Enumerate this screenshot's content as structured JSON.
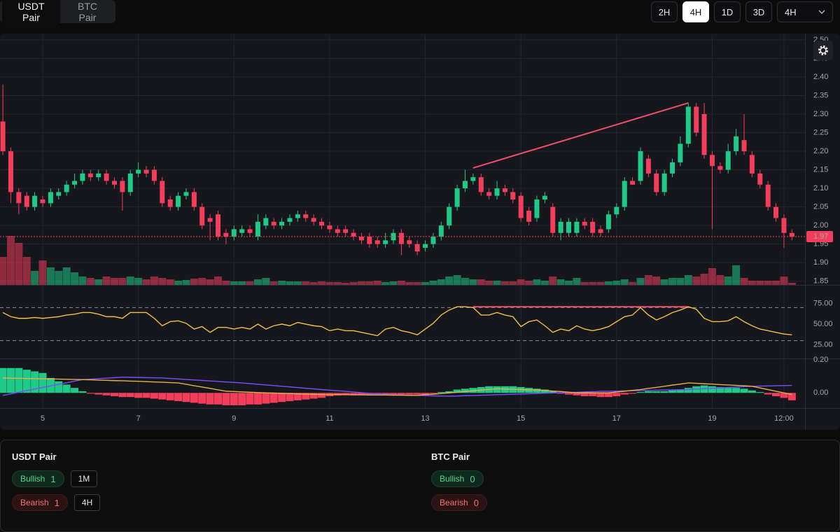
{
  "toolbar": {
    "pairs": [
      "USDT Pair",
      "BTC Pair"
    ],
    "active_pair": 0,
    "timeframes": [
      "2H",
      "4H",
      "1D",
      "3D"
    ],
    "active_timeframe": 1,
    "interval_select": "4H"
  },
  "chart_data": {
    "type": "candlestick",
    "up_color": "#1fc987",
    "down_color": "#f23d5b",
    "grid": true,
    "xlim": [
      4.107,
      20.94
    ],
    "xticks": [
      5,
      7,
      9,
      11,
      13,
      15,
      17,
      19,
      {
        "value": 20.5,
        "label": "12:00"
      }
    ],
    "ylim": [
      1.84,
      2.513
    ],
    "yticks": [
      1.85,
      {
        "value": 1.9,
        "label": "1.90"
      },
      1.95,
      {
        "value": 2,
        "label": "2.00"
      },
      2.05,
      {
        "value": 2.1,
        "label": "2.10"
      },
      2.15,
      {
        "value": 2.2,
        "label": "2.20"
      },
      2.25,
      {
        "value": 2.3,
        "label": "2.30"
      },
      2.35,
      {
        "value": 2.4,
        "label": "2.40"
      },
      2.45,
      {
        "value": 2.5,
        "label": "2.50"
      }
    ],
    "x": [
      4.167,
      4.333,
      4.5,
      4.667,
      4.833,
      5,
      5.167,
      5.333,
      5.5,
      5.667,
      5.833,
      6,
      6.167,
      6.333,
      6.5,
      6.667,
      6.833,
      7,
      7.167,
      7.333,
      7.5,
      7.667,
      7.833,
      8,
      8.167,
      8.333,
      8.5,
      8.667,
      8.833,
      9,
      9.167,
      9.333,
      9.5,
      9.667,
      9.833,
      10,
      10.167,
      10.333,
      10.5,
      10.667,
      10.833,
      11,
      11.167,
      11.333,
      11.5,
      11.667,
      11.833,
      12,
      12.167,
      12.333,
      12.5,
      12.667,
      12.833,
      13,
      13.167,
      13.333,
      13.5,
      13.667,
      13.833,
      14,
      14.167,
      14.333,
      14.5,
      14.667,
      14.833,
      15,
      15.167,
      15.333,
      15.5,
      15.667,
      15.833,
      16,
      16.167,
      16.333,
      16.5,
      16.667,
      16.833,
      17,
      17.167,
      17.333,
      17.5,
      17.667,
      17.833,
      18,
      18.167,
      18.333,
      18.5,
      18.667,
      18.833,
      19,
      19.167,
      19.333,
      19.5,
      19.667,
      19.833,
      20,
      20.167,
      20.333,
      20.5,
      20.667
    ],
    "open": [
      2.28,
      2.2,
      2.09,
      2.08,
      2.05,
      2.07,
      2.06,
      2.08,
      2.09,
      2.11,
      2.12,
      2.14,
      2.13,
      2.14,
      2.12,
      2.12,
      2.09,
      2.14,
      2.15,
      2.15,
      2.12,
      2.07,
      2.05,
      2.08,
      2.09,
      2.05,
      2.02,
      2.03,
      1.98,
      1.97,
      1.98,
      1.99,
      1.97,
      2.0,
      2.01,
      2.0,
      2.01,
      2.02,
      2.03,
      2.02,
      2.01,
      2.0,
      1.99,
      1.99,
      1.98,
      1.97,
      1.97,
      1.96,
      1.95,
      1.96,
      1.98,
      1.96,
      1.95,
      1.94,
      1.95,
      1.97,
      2.0,
      2.05,
      2.1,
      2.12,
      2.13,
      2.09,
      2.08,
      2.1,
      2.09,
      2.08,
      2.04,
      2.02,
      2.07,
      2.05,
      1.98,
      1.98,
      1.98,
      2.01,
      2.01,
      1.99,
      1.99,
      2.03,
      2.05,
      2.12,
      2.12,
      2.18,
      2.14,
      2.09,
      2.14,
      2.17,
      2.22,
      2.32,
      2.3,
      2.19,
      2.16,
      2.15,
      2.2,
      2.23,
      2.19,
      2.14,
      2.11,
      2.05,
      2.02,
      1.98
    ],
    "high": [
      2.38,
      2.21,
      2.1,
      2.09,
      2.09,
      2.08,
      2.1,
      2.1,
      2.12,
      2.14,
      2.15,
      2.15,
      2.15,
      2.15,
      2.13,
      2.13,
      2.15,
      2.17,
      2.16,
      2.16,
      2.13,
      2.08,
      2.09,
      2.1,
      2.1,
      2.06,
      2.03,
      2.04,
      1.99,
      2.0,
      2.0,
      2.0,
      2.03,
      2.03,
      2.02,
      2.02,
      2.03,
      2.04,
      2.04,
      2.03,
      2.02,
      2.01,
      2.0,
      2.0,
      1.99,
      1.98,
      1.98,
      1.97,
      1.98,
      1.99,
      1.99,
      1.97,
      1.96,
      1.96,
      1.98,
      2.01,
      2.06,
      2.11,
      2.15,
      2.14,
      2.14,
      2.1,
      2.12,
      2.11,
      2.1,
      2.09,
      2.05,
      2.08,
      2.09,
      2.06,
      2.02,
      2.02,
      2.02,
      2.02,
      2.02,
      2.0,
      2.04,
      2.06,
      2.13,
      2.13,
      2.21,
      2.19,
      2.15,
      2.15,
      2.18,
      2.24,
      2.33,
      2.33,
      2.33,
      2.2,
      2.17,
      2.22,
      2.26,
      2.3,
      2.2,
      2.15,
      2.12,
      2.06,
      2.03,
      1.99
    ],
    "low": [
      2.19,
      2.06,
      2.03,
      2.04,
      2.04,
      2.05,
      2.05,
      2.07,
      2.08,
      2.1,
      2.11,
      2.12,
      2.12,
      2.11,
      2.1,
      2.04,
      2.08,
      2.13,
      2.13,
      2.11,
      2.05,
      2.04,
      2.04,
      2.07,
      2.04,
      1.99,
      1.96,
      1.96,
      1.95,
      1.96,
      1.97,
      1.97,
      1.96,
      1.99,
      1.99,
      1.99,
      2.0,
      2.01,
      2.01,
      2.0,
      1.99,
      1.98,
      1.97,
      1.97,
      1.96,
      1.95,
      1.94,
      1.94,
      1.94,
      1.95,
      1.92,
      1.94,
      1.92,
      1.93,
      1.94,
      1.96,
      1.99,
      2.04,
      2.09,
      2.11,
      2.08,
      2.07,
      2.07,
      2.08,
      2.06,
      2.01,
      2.0,
      2.01,
      2.06,
      1.97,
      1.96,
      1.97,
      1.97,
      1.99,
      1.97,
      1.97,
      1.98,
      2.02,
      2.04,
      2.11,
      2.11,
      2.13,
      2.08,
      2.08,
      2.13,
      2.16,
      2.21,
      2.24,
      2.18,
      1.99,
      2.14,
      2.14,
      2.19,
      2.19,
      2.13,
      2.1,
      2.04,
      2.01,
      1.94,
      1.96
    ],
    "close": [
      2.2,
      2.09,
      2.06,
      2.05,
      2.08,
      2.06,
      2.09,
      2.09,
      2.11,
      2.12,
      2.14,
      2.13,
      2.14,
      2.12,
      2.11,
      2.09,
      2.14,
      2.15,
      2.14,
      2.12,
      2.06,
      2.05,
      2.08,
      2.09,
      2.05,
      2.0,
      2.01,
      1.97,
      1.97,
      1.99,
      1.99,
      1.98,
      2.01,
      2.02,
      2.0,
      2.01,
      2.02,
      2.03,
      2.02,
      2.01,
      2.0,
      1.99,
      1.98,
      1.98,
      1.97,
      1.96,
      1.95,
      1.95,
      1.96,
      1.98,
      1.95,
      1.95,
      1.93,
      1.95,
      1.97,
      2.0,
      2.05,
      2.1,
      2.12,
      2.13,
      2.09,
      2.08,
      2.1,
      2.09,
      2.07,
      2.02,
      2.01,
      2.07,
      2.08,
      1.98,
      2.01,
      2.01,
      2.01,
      2.0,
      1.98,
      1.98,
      2.03,
      2.05,
      2.12,
      2.11,
      2.2,
      2.14,
      2.09,
      2.14,
      2.17,
      2.22,
      2.32,
      2.25,
      2.19,
      2.16,
      2.15,
      2.2,
      2.24,
      2.2,
      2.14,
      2.11,
      2.05,
      2.02,
      1.98,
      1.97
    ],
    "volume": [
      40,
      70,
      60,
      40,
      20,
      35,
      25,
      20,
      25,
      18,
      12,
      10,
      8,
      12,
      10,
      10,
      12,
      10,
      8,
      12,
      10,
      8,
      6,
      7,
      9,
      10,
      8,
      12,
      6,
      5,
      5,
      5,
      8,
      10,
      5,
      6,
      5,
      5,
      5,
      4,
      5,
      4,
      4,
      3,
      4,
      5,
      5,
      6,
      4,
      5,
      6,
      4,
      4,
      4,
      6,
      8,
      12,
      14,
      10,
      8,
      8,
      6,
      6,
      5,
      5,
      8,
      6,
      8,
      6,
      12,
      8,
      6,
      10,
      4,
      4,
      4,
      5,
      6,
      8,
      4,
      10,
      14,
      12,
      8,
      10,
      10,
      14,
      12,
      16,
      24,
      14,
      12,
      28,
      10,
      6,
      6,
      6,
      6,
      12,
      3
    ],
    "volume_lim": [
      0,
      357
    ],
    "price_trendline": {
      "x": [
        14.0,
        18.5
      ],
      "y": [
        2.155,
        2.33
      ],
      "color": "#f0506a"
    },
    "rsi": {
      "values": [
        64,
        59,
        57,
        57,
        58,
        57,
        58,
        59,
        61,
        62,
        64,
        64,
        62,
        59,
        59,
        57,
        64,
        64,
        64,
        57,
        48,
        53,
        54,
        51,
        44,
        47,
        40,
        46,
        46,
        44,
        46,
        44,
        50,
        44,
        48,
        50,
        48,
        52,
        50,
        48,
        47,
        42,
        44,
        42,
        42,
        40,
        38,
        36,
        44,
        46,
        42,
        40,
        37,
        44,
        51,
        61,
        67,
        71,
        71,
        70,
        61,
        61,
        64,
        61,
        59,
        47,
        53,
        55,
        48,
        40,
        44,
        42,
        48,
        44,
        42,
        44,
        47,
        53,
        59,
        61,
        70,
        61,
        55,
        59,
        64,
        67,
        71,
        68,
        57,
        53,
        53,
        54,
        59,
        53,
        48,
        44,
        42,
        40,
        38,
        37
      ],
      "color": "#f0c04a",
      "ylim": [
        8.5,
        94.9
      ],
      "yticks": [
        {
          "value": 25,
          "label": "25.00"
        },
        {
          "value": 50,
          "label": "50.00"
        },
        {
          "value": 75,
          "label": "75.00"
        }
      ],
      "levels": [
        70,
        30
      ],
      "trendline": {
        "x": [
          14.0,
          18.5
        ],
        "y": [
          71,
          71
        ],
        "color": "#f0506a"
      }
    },
    "macd": {
      "histogram": [
        0.15,
        0.15,
        0.15,
        0.14,
        0.13,
        0.12,
        0.09,
        0.07,
        0.05,
        0.03,
        0.01,
        -0.005,
        -0.01,
        -0.015,
        -0.02,
        -0.025,
        -0.025,
        -0.03,
        -0.03,
        -0.035,
        -0.04,
        -0.045,
        -0.05,
        -0.055,
        -0.06,
        -0.065,
        -0.07,
        -0.07,
        -0.075,
        -0.075,
        -0.075,
        -0.07,
        -0.07,
        -0.065,
        -0.06,
        -0.055,
        -0.05,
        -0.045,
        -0.04,
        -0.035,
        -0.03,
        -0.02,
        -0.015,
        -0.01,
        -0.01,
        -0.01,
        -0.01,
        -0.01,
        -0.01,
        -0.01,
        -0.01,
        -0.01,
        -0.01,
        -0.01,
        -0.005,
        0.005,
        0.01,
        0.02,
        0.025,
        0.03,
        0.035,
        0.04,
        0.04,
        0.04,
        0.04,
        0.035,
        0.03,
        0.025,
        0.02,
        0.01,
        -0.005,
        -0.01,
        -0.015,
        -0.02,
        -0.02,
        -0.025,
        -0.025,
        -0.02,
        -0.01,
        -0.005,
        0.005,
        0.01,
        0.01,
        0.01,
        0.015,
        0.02,
        0.03,
        0.04,
        0.045,
        0.04,
        0.035,
        0.03,
        0.03,
        0.025,
        0.015,
        0.005,
        -0.01,
        -0.02,
        -0.03,
        -0.045
      ],
      "macd": [
        0.09,
        0.089,
        0.088,
        0.087,
        0.086,
        0.085,
        0.084,
        0.083,
        0.082,
        0.081,
        0.08,
        0.079,
        0.077,
        0.076,
        0.074,
        0.073,
        0.071,
        0.07,
        0.068,
        0.066,
        0.064,
        0.062,
        0.06,
        0.052,
        0.043,
        0.035,
        0.027,
        0.018,
        0.01,
        0.008,
        0.006,
        0.004,
        0.002,
        0.0,
        -0.001,
        -0.003,
        -0.004,
        -0.006,
        -0.007,
        -0.009,
        -0.01,
        -0.01,
        -0.011,
        -0.011,
        -0.012,
        -0.012,
        -0.013,
        -0.013,
        -0.013,
        -0.014,
        -0.014,
        -0.015,
        -0.015,
        -0.011,
        -0.008,
        -0.004,
        0.0,
        0.004,
        0.008,
        0.013,
        0.017,
        0.021,
        0.025,
        0.023,
        0.022,
        0.02,
        0.018,
        0.017,
        0.015,
        0.011,
        0.008,
        0.004,
        0.0,
        0.0,
        0.0,
        0.0,
        0.0,
        0.005,
        0.01,
        0.015,
        0.02,
        0.027,
        0.033,
        0.04,
        0.047,
        0.053,
        0.06,
        0.058,
        0.055,
        0.053,
        0.05,
        0.048,
        0.045,
        0.043,
        0.04,
        0.03,
        0.02,
        0.01,
        0.0,
        -0.01
      ],
      "signal": [
        -0.015,
        -0.006,
        0.004,
        0.014,
        0.023,
        0.033,
        0.042,
        0.052,
        0.061,
        0.071,
        0.08,
        0.083,
        0.086,
        0.089,
        0.092,
        0.095,
        0.094,
        0.093,
        0.092,
        0.091,
        0.09,
        0.087,
        0.084,
        0.081,
        0.078,
        0.075,
        0.072,
        0.069,
        0.066,
        0.063,
        0.06,
        0.056,
        0.052,
        0.048,
        0.044,
        0.04,
        0.036,
        0.032,
        0.028,
        0.024,
        0.02,
        0.016,
        0.013,
        0.009,
        0.005,
        0.001,
        -0.003,
        -0.006,
        -0.01,
        -0.011,
        -0.013,
        -0.014,
        -0.015,
        -0.016,
        -0.018,
        -0.019,
        -0.02,
        -0.019,
        -0.017,
        -0.016,
        -0.014,
        -0.013,
        -0.011,
        -0.01,
        -0.008,
        -0.007,
        -0.005,
        -0.004,
        -0.002,
        -0.001,
        0.001,
        0.003,
        0.004,
        0.006,
        0.007,
        0.009,
        0.01,
        0.011,
        0.012,
        0.013,
        0.014,
        0.015,
        0.016,
        0.017,
        0.018,
        0.019,
        0.02,
        0.023,
        0.025,
        0.028,
        0.03,
        0.033,
        0.035,
        0.038,
        0.04,
        0.041,
        0.042,
        0.043,
        0.044,
        0.045
      ],
      "macd_color": "#e8b04a",
      "signal_color": "#7c4dff",
      "ylim": [
        -0.092,
        0.204
      ],
      "yticks": [
        {
          "value": 0,
          "label": "0.00"
        },
        {
          "value": 0.2,
          "label": "0.20"
        }
      ]
    }
  },
  "summary": [
    {
      "pair": "USDT Pair",
      "bullish": {
        "label": "Bullish",
        "count": 1,
        "timeframes": [
          "1M"
        ]
      },
      "bearish": {
        "label": "Bearish",
        "count": 1,
        "timeframes": [
          "4H"
        ]
      }
    },
    {
      "pair": "BTC Pair",
      "bullish": {
        "label": "Bullish",
        "count": 0,
        "timeframes": []
      },
      "bearish": {
        "label": "Bearish",
        "count": 0,
        "timeframes": []
      }
    }
  ]
}
